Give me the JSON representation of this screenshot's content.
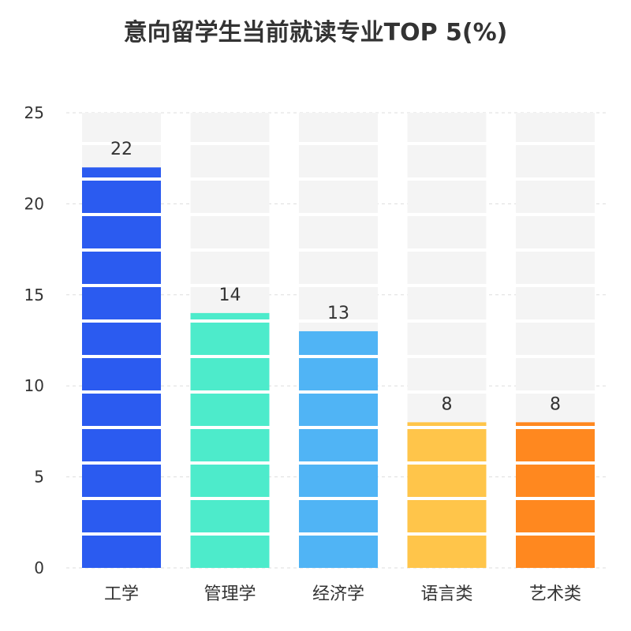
{
  "chart_data": {
    "type": "bar",
    "title": "意向留学生当前就读专业TOP 5(%)",
    "xlabel": "",
    "ylabel": "",
    "categories": [
      "工学",
      "管理学",
      "经济学",
      "语言类",
      "艺术类"
    ],
    "values": [
      22,
      14,
      13,
      8,
      8
    ],
    "colors": [
      "#2B5BF0",
      "#4DEBCB",
      "#50B4F5",
      "#FFC54A",
      "#FF881F"
    ],
    "background_color": "#F4F4F4",
    "ylim": [
      0,
      25
    ],
    "yticks": [
      "0",
      "5",
      "10",
      "15",
      "20",
      "25"
    ],
    "grid": true,
    "legend": "none"
  }
}
